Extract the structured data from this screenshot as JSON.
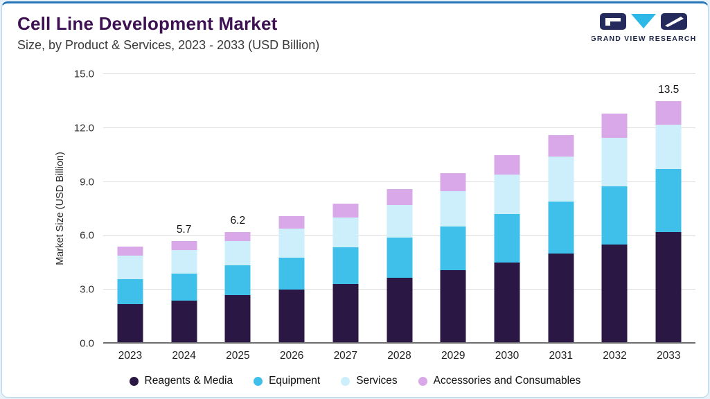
{
  "header": {
    "title": "Cell Line Development Market",
    "subtitle": "Size, by Product & Services, 2023 - 2033 (USD Billion)",
    "brand": "GRAND VIEW RESEARCH"
  },
  "theme": {
    "background": "#e7f1f9",
    "card_border": "#b3d6ea",
    "top_accent": "#2576b9",
    "title_color": "#3d1152",
    "logo_navy": "#242b5c",
    "logo_cyan": "#2cb9e8"
  },
  "chart_data": {
    "type": "bar",
    "stacked": true,
    "title": "Cell Line Development Market Size, by Product & Services, 2023 - 2033 (USD Billion)",
    "xlabel": "",
    "ylabel": "Market Size (USD Billion)",
    "ylim": [
      0,
      15
    ],
    "yticks": [
      "0.0",
      "3.0",
      "6.0",
      "9.0",
      "12.0",
      "15.0"
    ],
    "grid": "horizontal",
    "legend_position": "bottom",
    "categories": [
      "2023",
      "2024",
      "2025",
      "2026",
      "2027",
      "2028",
      "2029",
      "2030",
      "2031",
      "2032",
      "2033"
    ],
    "series": [
      {
        "name": "Reagents & Media",
        "color": "#2b1744",
        "values": [
          2.2,
          2.4,
          2.7,
          3.0,
          3.3,
          3.65,
          4.1,
          4.5,
          5.0,
          5.5,
          6.2
        ]
      },
      {
        "name": "Equipment",
        "color": "#3fc0ea",
        "values": [
          1.4,
          1.5,
          1.65,
          1.8,
          2.05,
          2.25,
          2.4,
          2.7,
          2.9,
          3.25,
          3.5
        ]
      },
      {
        "name": "Services",
        "color": "#cdeefb",
        "values": [
          1.3,
          1.3,
          1.35,
          1.6,
          1.65,
          1.8,
          2.0,
          2.2,
          2.5,
          2.7,
          2.5
        ]
      },
      {
        "name": "Accessories and Consumables",
        "color": "#d8a8e8",
        "values": [
          0.5,
          0.5,
          0.5,
          0.7,
          0.8,
          0.9,
          1.0,
          1.1,
          1.2,
          1.35,
          1.3
        ]
      }
    ],
    "totals": [
      5.4,
      5.7,
      6.2,
      7.1,
      7.8,
      8.6,
      9.5,
      10.5,
      11.6,
      12.8,
      13.5
    ],
    "total_labels": [
      "",
      "5.7",
      "6.2",
      "",
      "",
      "",
      "",
      "",
      "",
      "",
      "13.5"
    ]
  }
}
